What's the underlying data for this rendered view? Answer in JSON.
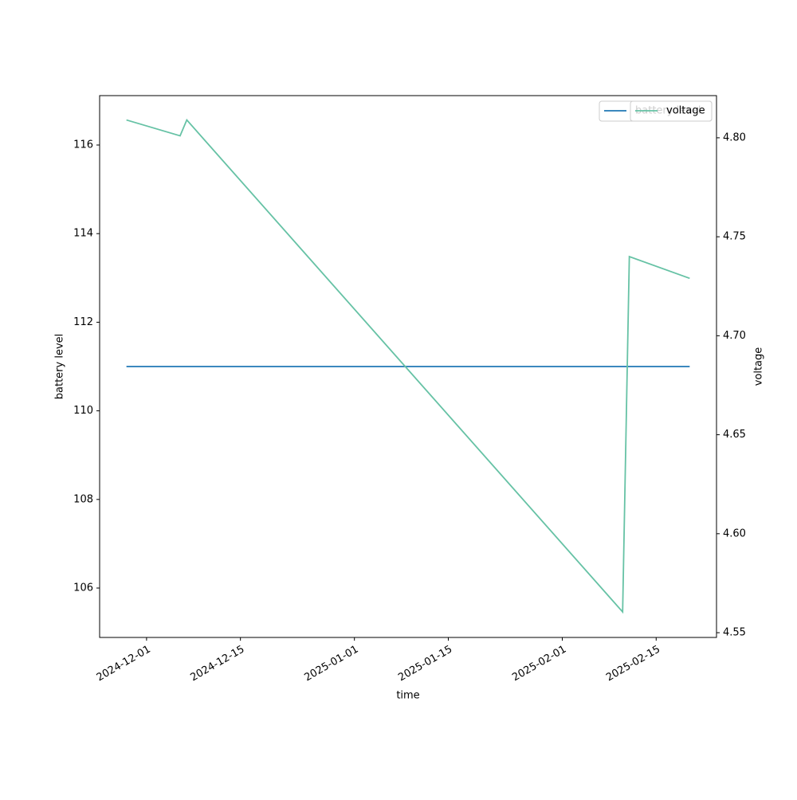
{
  "chart_data": {
    "type": "line",
    "x_label": "time",
    "y_label": "battery level",
    "y2_label": "voltage",
    "x": [
      "2024-11-28",
      "2024-12-06",
      "2024-12-07",
      "2025-02-10",
      "2025-02-11",
      "2025-02-20"
    ],
    "series": [
      {
        "name": "battery level",
        "color": "#1f77b4",
        "values": [
          111,
          111,
          111,
          111,
          111,
          111
        ]
      },
      {
        "name": "voltage",
        "color": "#66c2a5",
        "axis": "y2",
        "values": [
          4.809,
          4.801,
          4.809,
          4.5605,
          4.74,
          4.729
        ]
      }
    ],
    "xlim": [
      "2024-11-24",
      "2025-02-24"
    ],
    "xticks": [
      "2024-12-01",
      "2024-12-15",
      "2025-01-01",
      "2025-01-15",
      "2025-02-01",
      "2025-02-15"
    ],
    "ylim": [
      104.885,
      117.115
    ],
    "yticks": [
      106,
      108,
      110,
      112,
      114,
      116
    ],
    "y2lim": [
      4.5476,
      4.8213
    ],
    "y2ticks": [
      {
        "value": 4.55,
        "label": "4.55"
      },
      {
        "value": 4.6,
        "label": "4.60"
      },
      {
        "value": 4.65,
        "label": "4.65"
      },
      {
        "value": 4.7,
        "label": "4.70"
      },
      {
        "value": 4.75,
        "label": "4.75"
      },
      {
        "value": 4.8,
        "label": "4.80"
      }
    ],
    "legend": "upper right"
  }
}
